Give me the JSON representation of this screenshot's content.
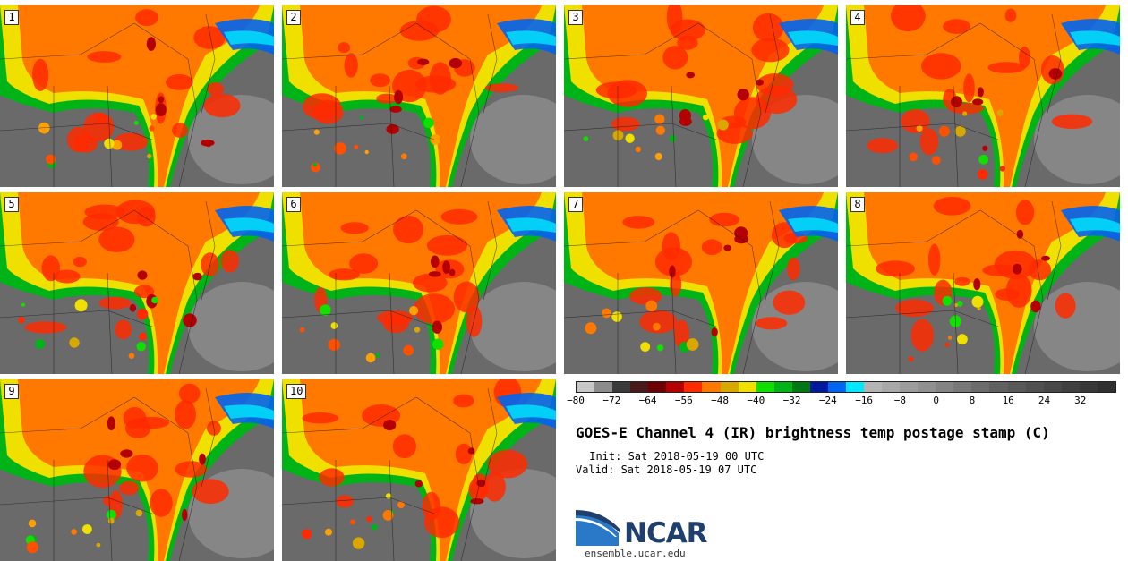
{
  "panels": [
    {
      "label": "1"
    },
    {
      "label": "2"
    },
    {
      "label": "3"
    },
    {
      "label": "4"
    },
    {
      "label": "5"
    },
    {
      "label": "6"
    },
    {
      "label": "7"
    },
    {
      "label": "8"
    },
    {
      "label": "9"
    },
    {
      "label": "10"
    }
  ],
  "colorbar": {
    "colors": [
      "#c8c8c8",
      "#8c8c8c",
      "#3a3a3a",
      "#4a1a1a",
      "#6e0000",
      "#b40000",
      "#ff2a00",
      "#ff7800",
      "#d8a800",
      "#f0e000",
      "#10e000",
      "#00b418",
      "#007814",
      "#0018a0",
      "#0064f0",
      "#00e8ff",
      "#b4b4b4",
      "#a8a8a8",
      "#9c9c9c",
      "#909090",
      "#848484",
      "#787878",
      "#6c6c6c",
      "#606060",
      "#585858",
      "#505050",
      "#484848",
      "#404040",
      "#383838",
      "#303030"
    ],
    "tick_labels": [
      "−80",
      "−72",
      "−64",
      "−56",
      "−48",
      "−40",
      "−32",
      "−24",
      "−16",
      "−8",
      "0",
      "8",
      "16",
      "24",
      "32"
    ]
  },
  "title": "GOES-E Channel 4 (IR) brightness temp postage stamp (C)",
  "init": " Init: Sat 2018-05-19 00 UTC",
  "valid": "Valid: Sat 2018-05-19 07 UTC",
  "logo": {
    "text": "NCAR",
    "url": "ensemble.ucar.edu",
    "colors": {
      "navy": "#1f3f6e",
      "blue": "#2a78c8"
    }
  }
}
